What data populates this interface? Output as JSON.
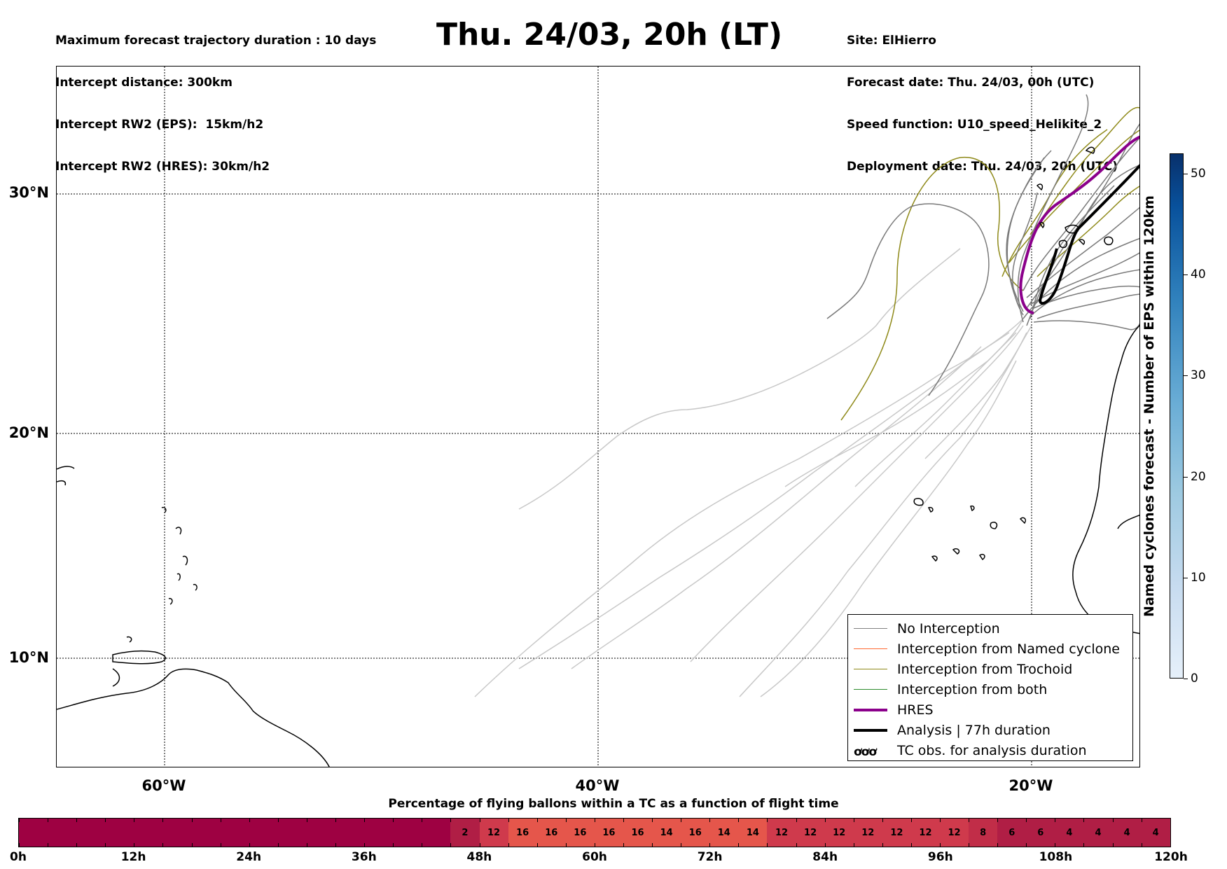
{
  "header_left": {
    "line1": "Maximum forecast trajectory duration : 10 days",
    "line2": "Intercept distance: 300km",
    "line3": "Intercept RW2 (EPS):  15km/h2",
    "line4": "Intercept RW2 (HRES): 30km/h2"
  },
  "title": "Thu. 24/03, 20h (LT)",
  "header_right": {
    "line1": "Site: ElHierro",
    "line2": "Forecast date: Thu. 24/03, 00h (UTC)",
    "line3": "Speed function: U10_speed_Helikite_2",
    "line4": "Deployment date: Thu. 24/03, 20h (UTC)"
  },
  "map": {
    "lat_labels": [
      "30°N",
      "20°N",
      "10°N"
    ],
    "lon_labels": [
      "60°W",
      "40°W",
      "20°W"
    ],
    "extent": {
      "lon_min": -65,
      "lon_max": -15,
      "lat_min": 5.4,
      "lat_max": 35.3
    }
  },
  "legend": {
    "items": [
      {
        "label": "No Interception",
        "color": "#808080",
        "width": 1.5
      },
      {
        "label": "Interception from Named cyclone",
        "color": "#ff6a33",
        "width": 1.5
      },
      {
        "label": "Interception from Trochoid",
        "color": "#8f8a1a",
        "width": 1.5
      },
      {
        "label": "Interception from both",
        "color": "#2e8b2e",
        "width": 1.5
      },
      {
        "label": "HRES",
        "color": "#8b008b",
        "width": 4
      },
      {
        "label": "Analysis | 77h duration",
        "color": "#000000",
        "width": 4
      }
    ],
    "tc_label": "TC obs. for analysis duration",
    "tc_symbol": "ơơơ"
  },
  "colorbar": {
    "title": "Named cyclones forecast - Number of EPS within 120km",
    "ticks": [
      "0",
      "10",
      "20",
      "30",
      "40",
      "50"
    ],
    "max": 52
  },
  "time_bar": {
    "title": "Percentage of flying ballons within a TC as a function of flight time",
    "cells": [
      "",
      "",
      "",
      "",
      "",
      "",
      "",
      "",
      "",
      "",
      "",
      "",
      "",
      "",
      "",
      "2",
      "12",
      "16",
      "16",
      "16",
      "16",
      "16",
      "14",
      "16",
      "14",
      "14",
      "12",
      "12",
      "12",
      "12",
      "12",
      "12",
      "12",
      "8",
      "6",
      "6",
      "4",
      "4",
      "4",
      "4"
    ],
    "time_labels": [
      "0h",
      "12h",
      "24h",
      "36h",
      "48h",
      "60h",
      "72h",
      "84h",
      "96h",
      "108h",
      "120h"
    ]
  }
}
